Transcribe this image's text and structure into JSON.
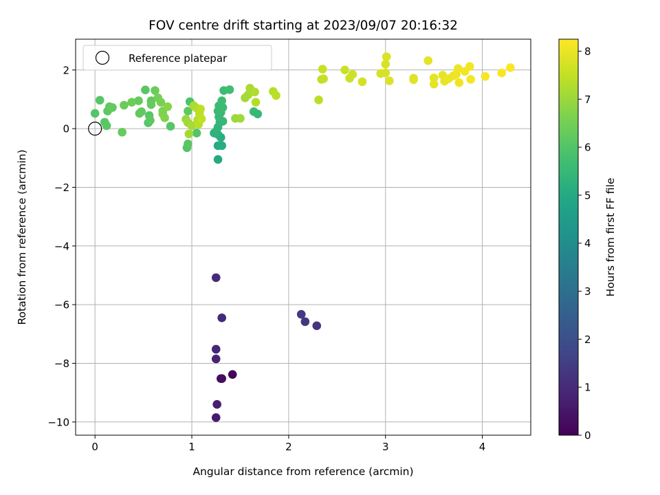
{
  "chart_data": {
    "type": "scatter",
    "title": "FOV centre drift starting at 2023/09/07 20:16:32",
    "xlabel": "Angular distance from reference (arcmin)",
    "ylabel": "Rotation from reference (arcmin)",
    "xlim": [
      -0.2,
      4.5
    ],
    "ylim": [
      -10.45,
      3.05
    ],
    "xticks": [
      0,
      1,
      2,
      3,
      4
    ],
    "yticks": [
      -10,
      -8,
      -6,
      -4,
      -2,
      0,
      2
    ],
    "xtick_labels": [
      "0",
      "1",
      "2",
      "3",
      "4"
    ],
    "ytick_labels": [
      "−10",
      "−8",
      "−6",
      "−4",
      "−2",
      "0",
      "2"
    ],
    "grid": true,
    "legend": {
      "position": "upper-left",
      "label": "Reference platepar"
    },
    "reference_point": {
      "x": 0,
      "y": 0
    },
    "colorbar": {
      "label": "Hours from first FF file",
      "colormap": "viridis",
      "range": [
        0,
        8.25
      ],
      "ticks": [
        0,
        1,
        2,
        3,
        4,
        5,
        6,
        7,
        8
      ],
      "tick_labels": [
        "0",
        "1",
        "2",
        "3",
        "4",
        "5",
        "6",
        "7",
        "8"
      ]
    },
    "points": [
      {
        "x": 1.31,
        "y": -8.52,
        "t": 0.05
      },
      {
        "x": 1.42,
        "y": -8.38,
        "t": 0.1
      },
      {
        "x": 1.3,
        "y": -8.52,
        "t": 0.3
      },
      {
        "x": 1.25,
        "y": -9.85,
        "t": 0.6
      },
      {
        "x": 1.26,
        "y": -9.4,
        "t": 0.7
      },
      {
        "x": 1.25,
        "y": -7.85,
        "t": 0.8
      },
      {
        "x": 1.25,
        "y": -7.52,
        "t": 0.9
      },
      {
        "x": 1.31,
        "y": -6.45,
        "t": 0.95
      },
      {
        "x": 1.25,
        "y": -5.08,
        "t": 1.0
      },
      {
        "x": 2.29,
        "y": -6.72,
        "t": 1.2
      },
      {
        "x": 2.17,
        "y": -6.58,
        "t": 1.3
      },
      {
        "x": 2.13,
        "y": -6.33,
        "t": 1.4
      },
      {
        "x": 1.27,
        "y": -1.05,
        "t": 5.0
      },
      {
        "x": 1.27,
        "y": -0.58,
        "t": 5.05
      },
      {
        "x": 1.31,
        "y": -0.58,
        "t": 5.1
      },
      {
        "x": 1.3,
        "y": -0.3,
        "t": 5.15
      },
      {
        "x": 1.27,
        "y": -0.2,
        "t": 5.2
      },
      {
        "x": 1.25,
        "y": -0.1,
        "t": 5.25
      },
      {
        "x": 1.23,
        "y": -0.15,
        "t": 5.3
      },
      {
        "x": 1.27,
        "y": 0.05,
        "t": 5.35
      },
      {
        "x": 1.29,
        "y": 0.22,
        "t": 5.4
      },
      {
        "x": 1.32,
        "y": 0.25,
        "t": 5.45
      },
      {
        "x": 1.28,
        "y": 0.4,
        "t": 5.5
      },
      {
        "x": 1.3,
        "y": 0.55,
        "t": 5.52
      },
      {
        "x": 1.27,
        "y": 0.6,
        "t": 5.55
      },
      {
        "x": 1.28,
        "y": 0.78,
        "t": 5.58
      },
      {
        "x": 1.32,
        "y": 0.72,
        "t": 5.6
      },
      {
        "x": 1.31,
        "y": 0.95,
        "t": 5.62
      },
      {
        "x": 1.33,
        "y": 1.3,
        "t": 5.65
      },
      {
        "x": 1.39,
        "y": 1.33,
        "t": 5.7
      },
      {
        "x": 1.68,
        "y": 0.5,
        "t": 5.45
      },
      {
        "x": 1.64,
        "y": 0.58,
        "t": 5.5
      },
      {
        "x": 0.0,
        "y": 0.52,
        "t": 6.0
      },
      {
        "x": 0.05,
        "y": 0.97,
        "t": 6.05
      },
      {
        "x": 0.1,
        "y": 0.22,
        "t": 6.1
      },
      {
        "x": 0.12,
        "y": 0.1,
        "t": 6.12
      },
      {
        "x": 0.13,
        "y": 0.6,
        "t": 6.15
      },
      {
        "x": 0.15,
        "y": 0.75,
        "t": 6.2
      },
      {
        "x": 0.18,
        "y": 0.72,
        "t": 6.25
      },
      {
        "x": 0.28,
        "y": -0.12,
        "t": 6.3
      },
      {
        "x": 0.3,
        "y": 0.8,
        "t": 6.35
      },
      {
        "x": 0.38,
        "y": 0.9,
        "t": 6.4
      },
      {
        "x": 0.45,
        "y": 0.95,
        "t": 6.3
      },
      {
        "x": 0.46,
        "y": 0.52,
        "t": 6.2
      },
      {
        "x": 0.48,
        "y": 0.58,
        "t": 6.25
      },
      {
        "x": 0.52,
        "y": 1.32,
        "t": 6.1
      },
      {
        "x": 0.55,
        "y": 0.2,
        "t": 6.0
      },
      {
        "x": 0.56,
        "y": 0.45,
        "t": 6.05
      },
      {
        "x": 0.57,
        "y": 0.28,
        "t": 6.15
      },
      {
        "x": 0.58,
        "y": 0.95,
        "t": 6.2
      },
      {
        "x": 0.58,
        "y": 0.82,
        "t": 6.3
      },
      {
        "x": 0.62,
        "y": 1.3,
        "t": 6.35
      },
      {
        "x": 0.65,
        "y": 1.05,
        "t": 6.5
      },
      {
        "x": 0.68,
        "y": 0.9,
        "t": 6.55
      },
      {
        "x": 0.7,
        "y": 0.6,
        "t": 6.6
      },
      {
        "x": 0.7,
        "y": 0.5,
        "t": 6.65
      },
      {
        "x": 0.72,
        "y": 0.37,
        "t": 6.7
      },
      {
        "x": 0.75,
        "y": 0.75,
        "t": 6.75
      },
      {
        "x": 0.78,
        "y": 0.08,
        "t": 6.05
      },
      {
        "x": 0.95,
        "y": -0.65,
        "t": 6.0
      },
      {
        "x": 0.96,
        "y": -0.52,
        "t": 6.1
      },
      {
        "x": 0.96,
        "y": 0.6,
        "t": 6.2
      },
      {
        "x": 0.98,
        "y": 0.92,
        "t": 5.9
      },
      {
        "x": 0.94,
        "y": 0.32,
        "t": 7.0
      },
      {
        "x": 0.96,
        "y": 0.2,
        "t": 7.05
      },
      {
        "x": 0.97,
        "y": -0.18,
        "t": 7.1
      },
      {
        "x": 1.0,
        "y": 0.1,
        "t": 7.15
      },
      {
        "x": 1.02,
        "y": 0.78,
        "t": 7.2
      },
      {
        "x": 1.05,
        "y": 0.7,
        "t": 7.25
      },
      {
        "x": 1.06,
        "y": 0.3,
        "t": 7.3
      },
      {
        "x": 1.07,
        "y": 0.15,
        "t": 7.35
      },
      {
        "x": 1.08,
        "y": 0.52,
        "t": 7.4
      },
      {
        "x": 1.09,
        "y": 0.67,
        "t": 7.45
      },
      {
        "x": 1.1,
        "y": 0.33,
        "t": 7.5
      },
      {
        "x": 1.05,
        "y": -0.15,
        "t": 6.0
      },
      {
        "x": 1.45,
        "y": 0.35,
        "t": 7.0
      },
      {
        "x": 1.5,
        "y": 0.35,
        "t": 7.05
      },
      {
        "x": 1.55,
        "y": 1.05,
        "t": 7.1
      },
      {
        "x": 1.58,
        "y": 1.15,
        "t": 7.15
      },
      {
        "x": 1.6,
        "y": 1.38,
        "t": 7.2
      },
      {
        "x": 1.65,
        "y": 1.25,
        "t": 7.25
      },
      {
        "x": 1.66,
        "y": 0.9,
        "t": 7.3
      },
      {
        "x": 1.84,
        "y": 1.27,
        "t": 7.35
      },
      {
        "x": 1.87,
        "y": 1.13,
        "t": 7.4
      },
      {
        "x": 2.31,
        "y": 0.98,
        "t": 7.4
      },
      {
        "x": 2.34,
        "y": 1.68,
        "t": 7.45
      },
      {
        "x": 2.36,
        "y": 1.7,
        "t": 7.5
      },
      {
        "x": 2.35,
        "y": 2.03,
        "t": 7.55
      },
      {
        "x": 2.58,
        "y": 2.0,
        "t": 7.6
      },
      {
        "x": 2.63,
        "y": 1.72,
        "t": 7.62
      },
      {
        "x": 2.66,
        "y": 1.85,
        "t": 7.65
      },
      {
        "x": 2.76,
        "y": 1.6,
        "t": 7.7
      },
      {
        "x": 2.95,
        "y": 1.88,
        "t": 7.72
      },
      {
        "x": 3.0,
        "y": 1.9,
        "t": 7.75
      },
      {
        "x": 3.0,
        "y": 2.2,
        "t": 7.78
      },
      {
        "x": 3.01,
        "y": 2.45,
        "t": 7.8
      },
      {
        "x": 3.04,
        "y": 1.63,
        "t": 7.82
      },
      {
        "x": 3.29,
        "y": 1.72,
        "t": 7.85
      },
      {
        "x": 3.29,
        "y": 1.67,
        "t": 7.87
      },
      {
        "x": 3.44,
        "y": 2.32,
        "t": 7.9
      },
      {
        "x": 3.5,
        "y": 1.73,
        "t": 7.92
      },
      {
        "x": 3.5,
        "y": 1.52,
        "t": 7.94
      },
      {
        "x": 3.59,
        "y": 1.82,
        "t": 7.96
      },
      {
        "x": 3.61,
        "y": 1.62,
        "t": 7.98
      },
      {
        "x": 3.65,
        "y": 1.7,
        "t": 8.0
      },
      {
        "x": 3.7,
        "y": 1.8,
        "t": 8.02
      },
      {
        "x": 3.73,
        "y": 1.85,
        "t": 8.04
      },
      {
        "x": 3.75,
        "y": 2.05,
        "t": 8.06
      },
      {
        "x": 3.76,
        "y": 1.57,
        "t": 8.08
      },
      {
        "x": 3.82,
        "y": 1.95,
        "t": 8.1
      },
      {
        "x": 3.87,
        "y": 2.12,
        "t": 8.12
      },
      {
        "x": 3.88,
        "y": 1.68,
        "t": 8.14
      },
      {
        "x": 4.03,
        "y": 1.78,
        "t": 8.16
      },
      {
        "x": 4.2,
        "y": 1.9,
        "t": 8.18
      },
      {
        "x": 4.29,
        "y": 2.08,
        "t": 8.2
      }
    ]
  }
}
